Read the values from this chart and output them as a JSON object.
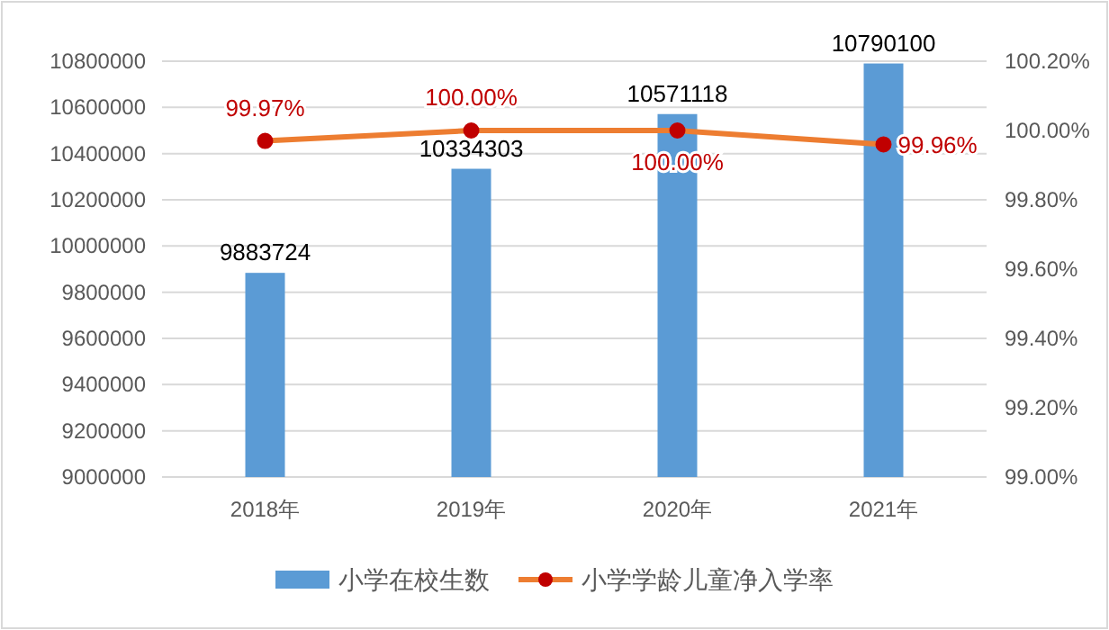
{
  "chart_data": {
    "type": "bar",
    "categories": [
      "2018年",
      "2019年",
      "2020年",
      "2021年"
    ],
    "series": [
      {
        "name": "小学在校生数",
        "color": "#5b9bd5",
        "values": [
          9883724,
          10334303,
          10571118,
          10790100
        ],
        "value_labels": [
          "9883724",
          "10334303",
          "10571118",
          "10790100"
        ]
      },
      {
        "name": "小学学龄儿童净入学率",
        "type": "line",
        "axis": "y2",
        "color": "#ed7d31",
        "marker": "circle",
        "values": [
          99.97,
          100.0,
          100.0,
          99.96
        ],
        "value_labels": [
          "99.97%",
          "100.00%",
          "100.00%",
          "99.96%"
        ]
      }
    ],
    "ylim": [
      9000000,
      10800000
    ],
    "yticks": [
      9000000,
      9200000,
      9400000,
      9600000,
      9800000,
      10000000,
      10200000,
      10400000,
      10600000,
      10800000
    ],
    "y2lim": [
      99.0,
      100.2
    ],
    "y2ticks": [
      {
        "value": 99.0,
        "label": "99.00%"
      },
      {
        "value": 99.2,
        "label": "99.20%"
      },
      {
        "value": 99.4,
        "label": "99.40%"
      },
      {
        "value": 99.6,
        "label": "99.60%"
      },
      {
        "value": 99.8,
        "label": "99.80%"
      },
      {
        "value": 100.0,
        "label": "100.00%"
      },
      {
        "value": 100.2,
        "label": "100.20%"
      }
    ],
    "grid": "y",
    "legend": "bottom"
  }
}
